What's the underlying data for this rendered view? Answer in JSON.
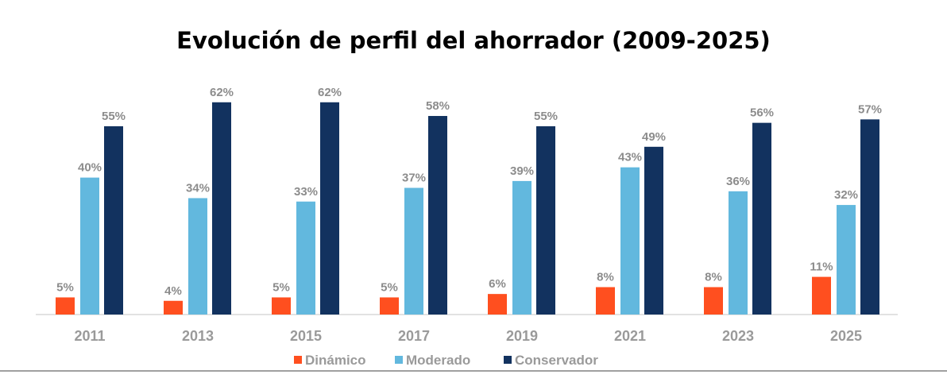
{
  "chart_data": {
    "type": "bar",
    "title": "Evolución de perfil del ahorrador (2009-2025)",
    "xlabel": "",
    "ylabel": "",
    "ylim": [
      0,
      65
    ],
    "grid": false,
    "legend_position": "bottom",
    "categories": [
      "2011",
      "2013",
      "2015",
      "2017",
      "2019",
      "2021",
      "2023",
      "2025"
    ],
    "series": [
      {
        "name": "Dinámico",
        "color": "#ff4f1f",
        "values": [
          5,
          4,
          5,
          5,
          6,
          8,
          8,
          11
        ]
      },
      {
        "name": "Moderado",
        "color": "#62b8de",
        "values": [
          40,
          34,
          33,
          37,
          39,
          43,
          36,
          32
        ]
      },
      {
        "name": "Conservador",
        "color": "#12325f",
        "values": [
          55,
          62,
          62,
          58,
          55,
          49,
          56,
          57
        ]
      }
    ],
    "value_suffix": "%"
  }
}
